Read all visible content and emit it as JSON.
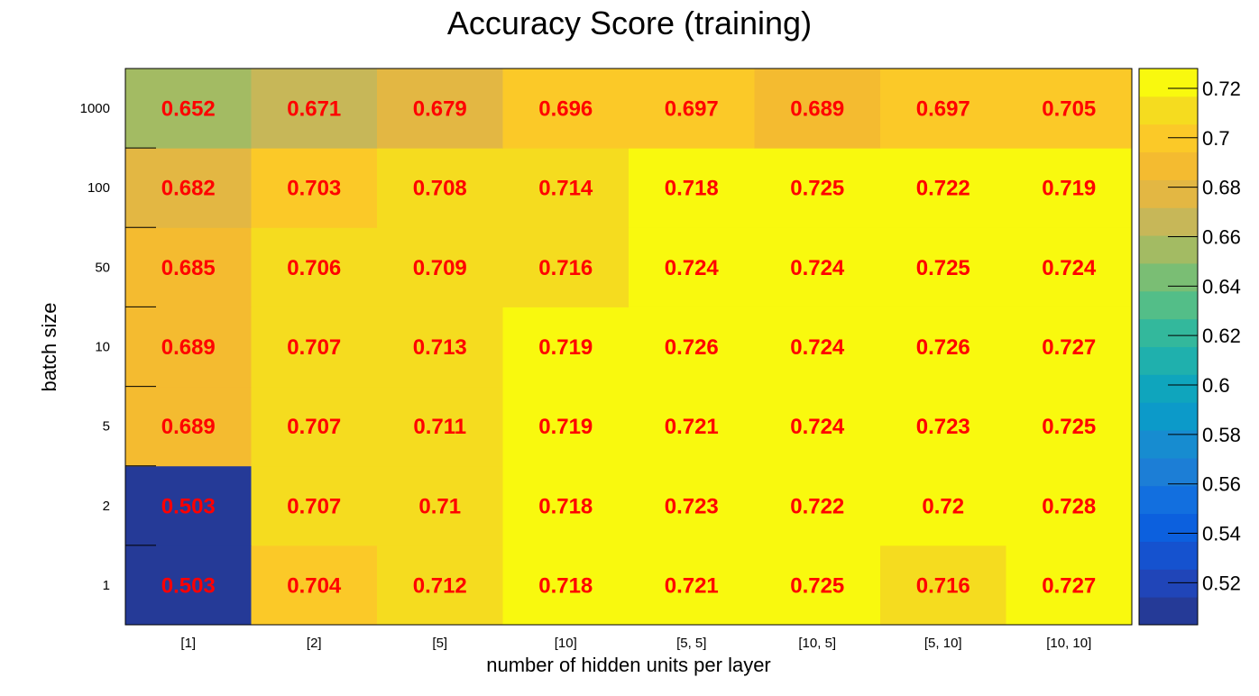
{
  "chart_data": {
    "type": "heatmap",
    "title": "Accuracy Score (training)",
    "xlabel": "number of hidden units per layer",
    "ylabel": "batch size",
    "x_categories": [
      "[1]",
      "[2]",
      "[5]",
      "[10]",
      "[5, 5]",
      "[10, 5]",
      "[5, 10]",
      "[10, 10]"
    ],
    "y_categories": [
      "1",
      "2",
      "5",
      "10",
      "50",
      "100",
      "1000"
    ],
    "values": [
      [
        "0.503",
        "0.704",
        "0.712",
        "0.718",
        "0.721",
        "0.725",
        "0.716",
        "0.727"
      ],
      [
        "0.503",
        "0.707",
        "0.71",
        "0.718",
        "0.723",
        "0.722",
        "0.72",
        "0.728"
      ],
      [
        "0.689",
        "0.707",
        "0.711",
        "0.719",
        "0.721",
        "0.724",
        "0.723",
        "0.725"
      ],
      [
        "0.689",
        "0.707",
        "0.713",
        "0.719",
        "0.726",
        "0.724",
        "0.726",
        "0.727"
      ],
      [
        "0.685",
        "0.706",
        "0.709",
        "0.716",
        "0.724",
        "0.724",
        "0.725",
        "0.724"
      ],
      [
        "0.682",
        "0.703",
        "0.708",
        "0.714",
        "0.718",
        "0.725",
        "0.722",
        "0.719"
      ],
      [
        "0.652",
        "0.671",
        "0.679",
        "0.696",
        "0.697",
        "0.689",
        "0.697",
        "0.705"
      ]
    ],
    "zlim": [
      0.503,
      0.728
    ],
    "colorbar_ticks": [
      "0.52",
      "0.54",
      "0.56",
      "0.58",
      "0.6",
      "0.62",
      "0.64",
      "0.66",
      "0.68",
      "0.7",
      "0.72"
    ],
    "colorbar_levels": 20,
    "palette": [
      "#253a97",
      "#2045b8",
      "#1552cf",
      "#0c60de",
      "#126fdf",
      "#1c7ed6",
      "#178cd0",
      "#0c9ac9",
      "#0fa5bd",
      "#1fb0ad",
      "#33b89c",
      "#53be88",
      "#7abe74",
      "#a3bb63",
      "#c7b758",
      "#e3b743",
      "#f4bb30",
      "#fbc928",
      "#f5dc1f",
      "#f9f90e"
    ],
    "label_color": "#ff0000",
    "label_text_precision": "3 significant digits"
  }
}
